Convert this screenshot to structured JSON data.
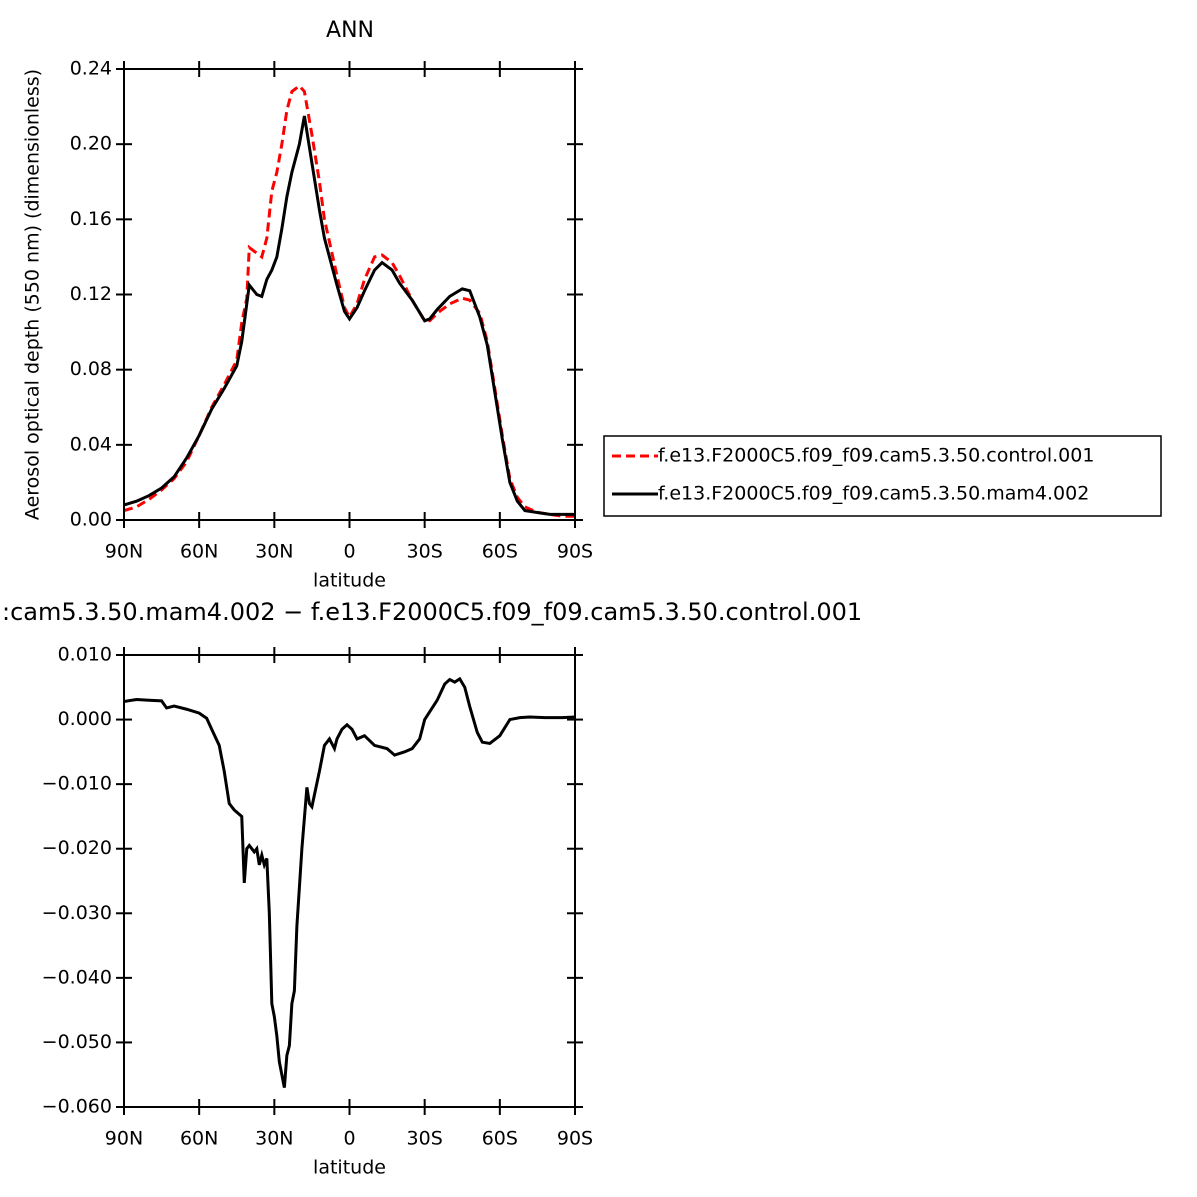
{
  "chart_data": [
    {
      "type": "line",
      "title": "ANN",
      "xlabel": "latitude",
      "ylabel": "Aerosol optical depth (550 nm) (dimensionless)",
      "x": [
        90,
        85,
        80,
        75,
        70,
        65,
        60,
        55,
        50,
        45,
        43,
        41,
        40,
        37,
        35,
        33,
        31,
        29,
        27,
        25,
        23,
        20,
        18,
        15,
        12,
        10,
        5,
        2,
        0,
        -3,
        -6,
        -10,
        -13,
        -17,
        -20,
        -25,
        -30,
        -32,
        -35,
        -40,
        -45,
        -48,
        -52,
        -55,
        -58,
        -61,
        -64,
        -67,
        -70,
        -75,
        -80,
        -85,
        -90
      ],
      "xlim": [
        90,
        -90
      ],
      "xticks": [
        {
          "value": 90,
          "label": "90N"
        },
        {
          "value": 60,
          "label": "60N"
        },
        {
          "value": 30,
          "label": "30N"
        },
        0,
        {
          "value": -30,
          "label": "30S"
        },
        {
          "value": -60,
          "label": "60S"
        },
        {
          "value": -90,
          "label": "90S"
        }
      ],
      "ylim": [
        0,
        0.24
      ],
      "yticks": [
        {
          "value": 0,
          "label": "0.00"
        },
        {
          "value": 0.04,
          "label": "0.04"
        },
        {
          "value": 0.08,
          "label": "0.08"
        },
        {
          "value": 0.12,
          "label": "0.12"
        },
        {
          "value": 0.16,
          "label": "0.16"
        },
        {
          "value": 0.2,
          "label": "0.20"
        },
        {
          "value": 0.24,
          "label": "0.24"
        }
      ],
      "legend": "right",
      "series": [
        {
          "name": "f.e13.F2000C5.f09_f09.cam5.3.50.control.001",
          "color": "#ff0000",
          "linestyle": "dashed",
          "values": [
            0.005,
            0.007,
            0.011,
            0.016,
            0.022,
            0.031,
            0.045,
            0.06,
            0.072,
            0.085,
            0.105,
            0.118,
            0.145,
            0.142,
            0.14,
            0.15,
            0.175,
            0.185,
            0.2,
            0.218,
            0.228,
            0.231,
            0.228,
            0.205,
            0.18,
            0.16,
            0.13,
            0.113,
            0.108,
            0.115,
            0.128,
            0.14,
            0.141,
            0.137,
            0.13,
            0.117,
            0.106,
            0.106,
            0.11,
            0.115,
            0.118,
            0.117,
            0.11,
            0.095,
            0.07,
            0.045,
            0.022,
            0.012,
            0.007,
            0.004,
            0.003,
            0.002,
            0.002
          ]
        },
        {
          "name": "f.e13.F2000C5.f09_f09.cam5.3.50.mam4.002",
          "color": "#000000",
          "linestyle": "solid",
          "values": [
            0.008,
            0.01,
            0.013,
            0.017,
            0.023,
            0.033,
            0.045,
            0.059,
            0.07,
            0.082,
            0.095,
            0.115,
            0.125,
            0.12,
            0.119,
            0.128,
            0.133,
            0.14,
            0.155,
            0.172,
            0.185,
            0.2,
            0.215,
            0.19,
            0.165,
            0.15,
            0.125,
            0.111,
            0.107,
            0.113,
            0.122,
            0.133,
            0.137,
            0.133,
            0.126,
            0.117,
            0.106,
            0.107,
            0.112,
            0.119,
            0.123,
            0.122,
            0.108,
            0.093,
            0.068,
            0.043,
            0.02,
            0.01,
            0.005,
            0.004,
            0.003,
            0.003,
            0.003
          ]
        }
      ]
    },
    {
      "type": "line",
      "title": ":cam5.3.50.mam4.002 − f.e13.F2000C5.f09_f09.cam5.3.50.control.001",
      "xlabel": "latitude",
      "x": [
        90,
        85,
        80,
        75,
        73,
        70,
        65,
        60,
        57,
        55,
        52,
        50,
        48,
        46,
        43,
        42,
        41,
        40,
        38,
        37,
        36,
        35,
        34,
        33,
        32,
        31,
        30,
        29,
        28,
        26,
        25,
        24,
        23,
        22,
        21,
        20,
        19,
        17,
        16,
        15,
        12,
        10,
        8,
        6,
        5,
        3,
        1,
        -1,
        -3,
        -6,
        -10,
        -15,
        -18,
        -22,
        -25,
        -28,
        -30,
        -35,
        -38,
        -40,
        -42,
        -44,
        -46,
        -48,
        -51,
        -53,
        -56,
        -60,
        -64,
        -68,
        -72,
        -78,
        -85,
        -90
      ],
      "xlim": [
        90,
        -90
      ],
      "xticks": [
        {
          "value": 90,
          "label": "90N"
        },
        {
          "value": 60,
          "label": "60N"
        },
        {
          "value": 30,
          "label": "30N"
        },
        0,
        {
          "value": -30,
          "label": "30S"
        },
        {
          "value": -60,
          "label": "60S"
        },
        {
          "value": -90,
          "label": "90S"
        }
      ],
      "ylim": [
        -0.06,
        0.01
      ],
      "yticks": [
        {
          "value": 0.01,
          "label": "0.010"
        },
        {
          "value": 0,
          "label": "0.000"
        },
        {
          "value": -0.01,
          "label": "−0.010"
        },
        {
          "value": -0.02,
          "label": "−0.020"
        },
        {
          "value": -0.03,
          "label": "−0.030"
        },
        {
          "value": -0.04,
          "label": "−0.040"
        },
        {
          "value": -0.05,
          "label": "−0.050"
        },
        {
          "value": -0.06,
          "label": "−0.060"
        }
      ],
      "series": [
        {
          "color": "#000000",
          "linestyle": "solid",
          "values": [
            0.0028,
            0.0031,
            0.003,
            0.0029,
            0.0018,
            0.0021,
            0.0016,
            0.001,
            0.0002,
            -0.0015,
            -0.004,
            -0.008,
            -0.013,
            -0.014,
            -0.015,
            -0.0253,
            -0.02,
            -0.0195,
            -0.0205,
            -0.02,
            -0.0225,
            -0.021,
            -0.0225,
            -0.0215,
            -0.03,
            -0.044,
            -0.046,
            -0.049,
            -0.053,
            -0.057,
            -0.052,
            -0.0505,
            -0.044,
            -0.042,
            -0.032,
            -0.026,
            -0.02,
            -0.0105,
            -0.013,
            -0.0135,
            -0.008,
            -0.004,
            -0.003,
            -0.0045,
            -0.003,
            -0.0015,
            -0.0008,
            -0.0015,
            -0.003,
            -0.0025,
            -0.004,
            -0.0045,
            -0.0055,
            -0.005,
            -0.0045,
            -0.003,
            0,
            0.003,
            0.0055,
            0.0062,
            0.0058,
            0.0063,
            0.005,
            0.002,
            -0.002,
            -0.0035,
            -0.0037,
            -0.0025,
            0,
            0.0003,
            0.0004,
            0.0003,
            0.0003,
            0.0004
          ]
        }
      ]
    }
  ]
}
